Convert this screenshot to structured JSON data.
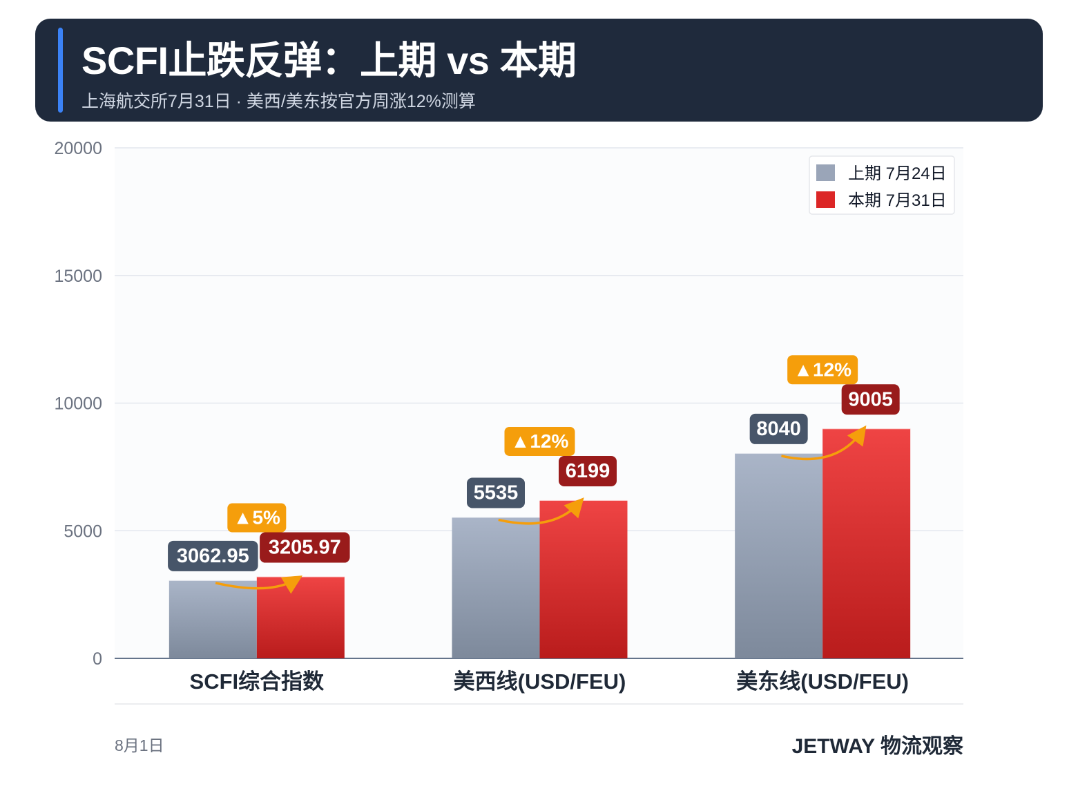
{
  "header": {
    "title": "SCFI止跌反弹：上期 vs 本期",
    "subtitle": "上海航交所7月31日 · 美西/美东按官方周涨12%测算"
  },
  "chart_data": {
    "type": "bar",
    "categories": [
      "SCFI综合指数",
      "美西线(USD/FEU)",
      "美东线(USD/FEU)"
    ],
    "series": [
      {
        "name": "上期 7月24日",
        "values": [
          3062.95,
          5535,
          8040
        ],
        "labels": [
          "3062.95",
          "5535",
          "8040"
        ],
        "color": "#9aa5b8"
      },
      {
        "name": "本期 7月31日",
        "values": [
          3205.97,
          6199,
          9005
        ],
        "labels": [
          "3205.97",
          "6199",
          "9005"
        ],
        "color": "#dc2626"
      }
    ],
    "changes": [
      "▲5%",
      "▲12%",
      "▲12%"
    ],
    "ylim": [
      0,
      20000
    ],
    "yticks": [
      "0",
      "5000",
      "10000",
      "15000",
      "20000"
    ],
    "grid": true,
    "legend": "top-right"
  },
  "colors": {
    "header_bg": "#1f2a3c",
    "accent": "#3b82f6",
    "prev_label_bg": "#475569",
    "curr_label_bg": "#991b1b",
    "change_badge": "#f59e0b"
  },
  "footer": {
    "date": "8月1日",
    "brand": "JETWAY 物流观察"
  }
}
